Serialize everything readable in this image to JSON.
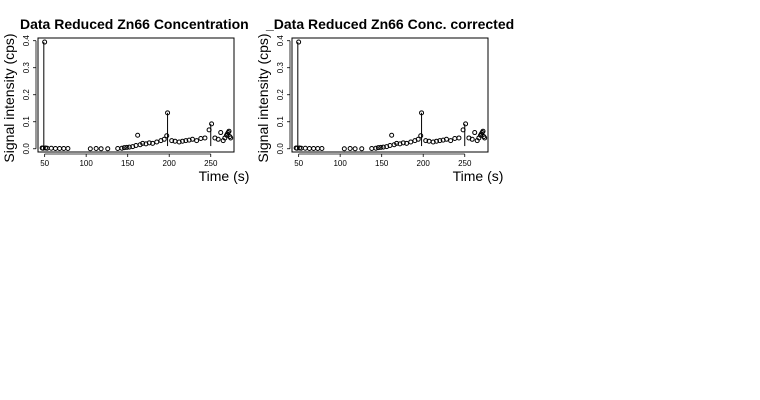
{
  "chart_data": [
    {
      "type": "scatter",
      "title": "Data Reduced Zn66 Concentration",
      "xlabel": "Time (s)",
      "ylabel": "Signal intensity (cps)",
      "xticks": [
        "50",
        "100",
        "150",
        "200",
        "250"
      ],
      "yticks": [
        "0.0",
        "0.1",
        "0.2",
        "0.3",
        "0.4"
      ],
      "xlim": [
        42,
        278
      ],
      "ylim": [
        -0.012,
        0.41
      ],
      "grid": false,
      "marker": "open-circle",
      "point_color": "#000000",
      "spikes": [
        {
          "x": 49,
          "y": 0.0,
          "y_top": 0.395
        },
        {
          "x": 198,
          "y": 0.01,
          "y_top": 0.133
        },
        {
          "x": 250,
          "y": 0.01,
          "y_top": 0.092
        }
      ],
      "series": [
        {
          "x": [
            47,
            48,
            50,
            51,
            53,
            58,
            63,
            68,
            73,
            78,
            105,
            112,
            118,
            126,
            138,
            143,
            146,
            149,
            152,
            156,
            160,
            162,
            165,
            168,
            172,
            176,
            180,
            185,
            190,
            194,
            197,
            198,
            203,
            207,
            212,
            216,
            220,
            224,
            228,
            233,
            238,
            243,
            248,
            251,
            255,
            259,
            262,
            265,
            267,
            269,
            270,
            271,
            272,
            273,
            274
          ],
          "y": [
            0.003,
            0.002,
            0.395,
            0.003,
            0.002,
            0.002,
            0.001,
            0.001,
            0.001,
            0.001,
            0.0,
            0.001,
            0.0,
            0.0,
            0.001,
            0.002,
            0.004,
            0.005,
            0.006,
            0.008,
            0.012,
            0.05,
            0.015,
            0.02,
            0.018,
            0.022,
            0.02,
            0.025,
            0.03,
            0.035,
            0.048,
            0.133,
            0.03,
            0.028,
            0.025,
            0.028,
            0.03,
            0.032,
            0.035,
            0.03,
            0.038,
            0.04,
            0.07,
            0.092,
            0.04,
            0.035,
            0.06,
            0.03,
            0.04,
            0.05,
            0.055,
            0.06,
            0.065,
            0.045,
            0.04
          ]
        }
      ]
    },
    {
      "type": "scatter",
      "title": "_Data Reduced Zn66 Conc. corrected",
      "xlabel": "Time (s)",
      "ylabel": "Signal intensity (cps)",
      "xticks": [
        "50",
        "100",
        "150",
        "200",
        "250"
      ],
      "yticks": [
        "0.0",
        "0.1",
        "0.2",
        "0.3",
        "0.4"
      ],
      "xlim": [
        42,
        278
      ],
      "ylim": [
        -0.012,
        0.41
      ],
      "grid": false,
      "marker": "open-circle",
      "point_color": "#000000",
      "spikes": [
        {
          "x": 49,
          "y": 0.0,
          "y_top": 0.395
        },
        {
          "x": 198,
          "y": 0.01,
          "y_top": 0.133
        },
        {
          "x": 250,
          "y": 0.01,
          "y_top": 0.092
        }
      ],
      "series": [
        {
          "x": [
            47,
            48,
            50,
            51,
            53,
            58,
            63,
            68,
            73,
            78,
            105,
            112,
            118,
            126,
            138,
            143,
            146,
            149,
            152,
            156,
            160,
            162,
            165,
            168,
            172,
            176,
            180,
            185,
            190,
            194,
            197,
            198,
            203,
            207,
            212,
            216,
            220,
            224,
            228,
            233,
            238,
            243,
            248,
            251,
            255,
            259,
            262,
            265,
            267,
            269,
            270,
            271,
            272,
            273,
            274
          ],
          "y": [
            0.003,
            0.002,
            0.395,
            0.003,
            0.002,
            0.002,
            0.001,
            0.001,
            0.001,
            0.001,
            0.0,
            0.001,
            0.0,
            0.0,
            0.001,
            0.002,
            0.004,
            0.005,
            0.006,
            0.008,
            0.012,
            0.05,
            0.015,
            0.02,
            0.018,
            0.022,
            0.02,
            0.025,
            0.03,
            0.035,
            0.048,
            0.133,
            0.03,
            0.028,
            0.025,
            0.028,
            0.03,
            0.032,
            0.035,
            0.03,
            0.038,
            0.04,
            0.07,
            0.092,
            0.04,
            0.035,
            0.06,
            0.03,
            0.04,
            0.05,
            0.055,
            0.06,
            0.065,
            0.045,
            0.04
          ]
        }
      ]
    }
  ]
}
